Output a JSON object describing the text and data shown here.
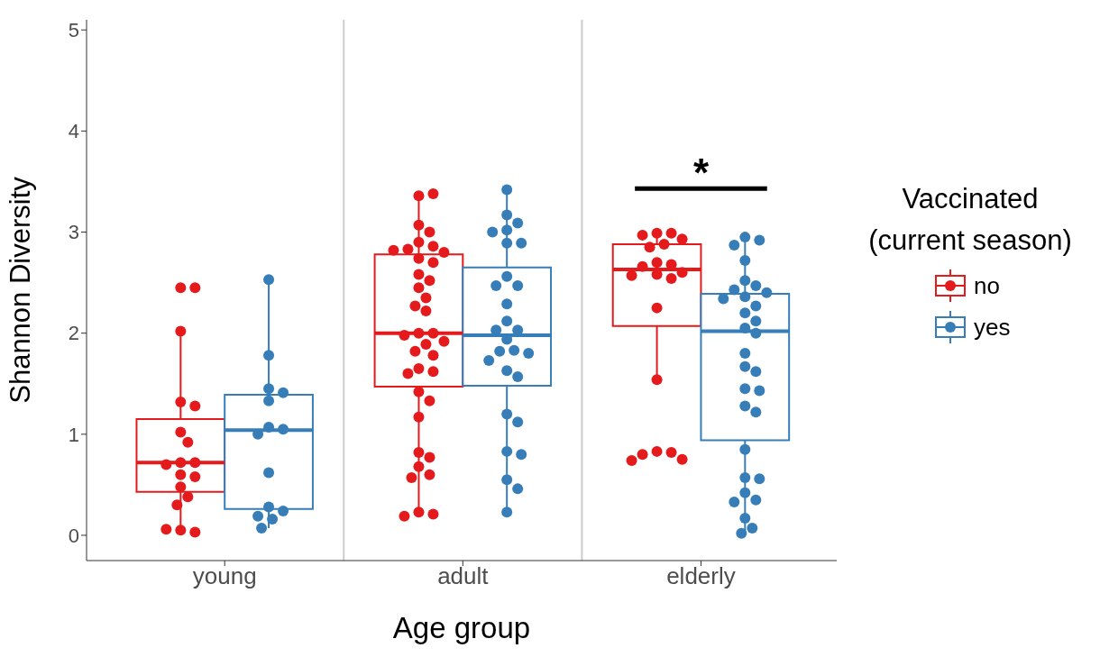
{
  "chart_data": {
    "type": "box",
    "xlabel": "Age group",
    "ylabel": "Shannon Diversity",
    "legend_title": "Vaccinated (current season)",
    "legend": "right",
    "marker": "circle",
    "grid": false,
    "categories": [
      "young",
      "adult",
      "elderly"
    ],
    "ylim": [
      -0.25,
      5.1
    ],
    "yticks": [
      0,
      1,
      2,
      3,
      4,
      5
    ],
    "annotations": [
      "*"
    ],
    "series": [
      {
        "name": "no",
        "color": "#e41a1c",
        "boxes": [
          {
            "low": 0.03,
            "q1": 0.43,
            "median": 0.72,
            "q3": 1.15,
            "high": 2.02
          },
          {
            "low": 0.19,
            "q1": 1.47,
            "median": 2.0,
            "q3": 2.78,
            "high": 3.38
          },
          {
            "low": 1.54,
            "q1": 2.07,
            "median": 2.63,
            "q3": 2.88,
            "high": 2.99
          }
        ]
      },
      {
        "name": "yes",
        "color": "#377eb8",
        "boxes": [
          {
            "low": 0.07,
            "q1": 0.26,
            "median": 1.04,
            "q3": 1.39,
            "high": 2.53
          },
          {
            "low": 0.23,
            "q1": 1.48,
            "median": 1.98,
            "q3": 2.65,
            "high": 3.42
          },
          {
            "low": 0.02,
            "q1": 0.94,
            "median": 2.02,
            "q3": 2.39,
            "high": 2.95
          }
        ]
      },
      {
        "type": "scatter",
        "color": "#e41a1c",
        "x": [
          "young",
          "young",
          "young",
          "young",
          "young",
          "young",
          "young",
          "young",
          "young",
          "young",
          "young",
          "young",
          "young",
          "young",
          "young",
          "young",
          "young",
          "young",
          "adult",
          "adult",
          "adult",
          "adult",
          "adult",
          "adult",
          "adult",
          "adult",
          "adult",
          "adult",
          "adult",
          "adult",
          "adult",
          "adult",
          "adult",
          "adult",
          "adult",
          "adult",
          "adult",
          "adult",
          "adult",
          "adult",
          "adult",
          "adult",
          "adult",
          "adult",
          "adult",
          "adult",
          "adult",
          "adult",
          "adult",
          "adult",
          "adult",
          "adult",
          "adult",
          "adult",
          "adult",
          "adult",
          "elderly",
          "elderly",
          "elderly",
          "elderly",
          "elderly",
          "elderly",
          "elderly",
          "elderly",
          "elderly",
          "elderly",
          "elderly",
          "elderly",
          "elderly",
          "elderly",
          "elderly",
          "elderly",
          "elderly",
          "elderly",
          "elderly",
          "elderly"
        ],
        "values": [
          2.45,
          2.45,
          2.02,
          1.32,
          1.28,
          1.02,
          0.92,
          0.72,
          0.72,
          0.7,
          0.6,
          0.58,
          0.48,
          0.38,
          0.3,
          0.05,
          0.03,
          0.06,
          3.36,
          3.38,
          3.07,
          3.0,
          2.9,
          2.86,
          2.83,
          2.82,
          2.8,
          2.74,
          2.7,
          2.58,
          2.52,
          2.45,
          2.35,
          2.27,
          2.22,
          2.0,
          2.0,
          1.98,
          1.92,
          1.89,
          1.82,
          1.78,
          1.65,
          1.62,
          1.6,
          1.42,
          1.33,
          1.17,
          0.82,
          0.77,
          0.68,
          0.6,
          0.57,
          0.23,
          0.21,
          0.19,
          2.99,
          2.99,
          2.97,
          2.93,
          2.88,
          2.85,
          2.7,
          2.68,
          2.66,
          2.6,
          2.58,
          2.57,
          2.54,
          2.25,
          1.54,
          0.83,
          0.82,
          0.8,
          0.75,
          0.74
        ]
      },
      {
        "type": "scatter",
        "color": "#377eb8",
        "x": [
          "young",
          "young",
          "young",
          "young",
          "young",
          "young",
          "young",
          "young",
          "young",
          "young",
          "young",
          "young",
          "young",
          "young",
          "adult",
          "adult",
          "adult",
          "adult",
          "adult",
          "adult",
          "adult",
          "adult",
          "adult",
          "adult",
          "adult",
          "adult",
          "adult",
          "adult",
          "adult",
          "adult",
          "adult",
          "adult",
          "adult",
          "adult",
          "adult",
          "adult",
          "adult",
          "adult",
          "adult",
          "adult",
          "adult",
          "adult",
          "elderly",
          "elderly",
          "elderly",
          "elderly",
          "elderly",
          "elderly",
          "elderly",
          "elderly",
          "elderly",
          "elderly",
          "elderly",
          "elderly",
          "elderly",
          "elderly",
          "elderly",
          "elderly",
          "elderly",
          "elderly",
          "elderly",
          "elderly",
          "elderly",
          "elderly",
          "elderly",
          "elderly",
          "elderly",
          "elderly",
          "elderly",
          "elderly",
          "elderly",
          "elderly",
          "elderly"
        ],
        "values": [
          2.53,
          1.78,
          1.45,
          1.41,
          1.33,
          1.07,
          1.05,
          1.0,
          0.62,
          0.28,
          0.24,
          0.19,
          0.16,
          0.07,
          3.42,
          3.17,
          3.09,
          3.02,
          3.0,
          2.89,
          2.89,
          2.56,
          2.47,
          2.47,
          2.29,
          2.12,
          2.03,
          2.03,
          1.94,
          1.83,
          1.82,
          1.8,
          1.73,
          1.63,
          1.57,
          1.2,
          1.12,
          0.83,
          0.8,
          0.55,
          0.46,
          0.23,
          2.95,
          2.92,
          2.87,
          2.72,
          2.52,
          2.47,
          2.43,
          2.4,
          2.36,
          2.34,
          2.27,
          2.2,
          2.12,
          2.05,
          2.0,
          1.8,
          1.67,
          1.62,
          1.45,
          1.43,
          1.28,
          1.22,
          0.85,
          0.57,
          0.56,
          0.42,
          0.35,
          0.33,
          0.17,
          0.07,
          0.02
        ]
      }
    ]
  }
}
